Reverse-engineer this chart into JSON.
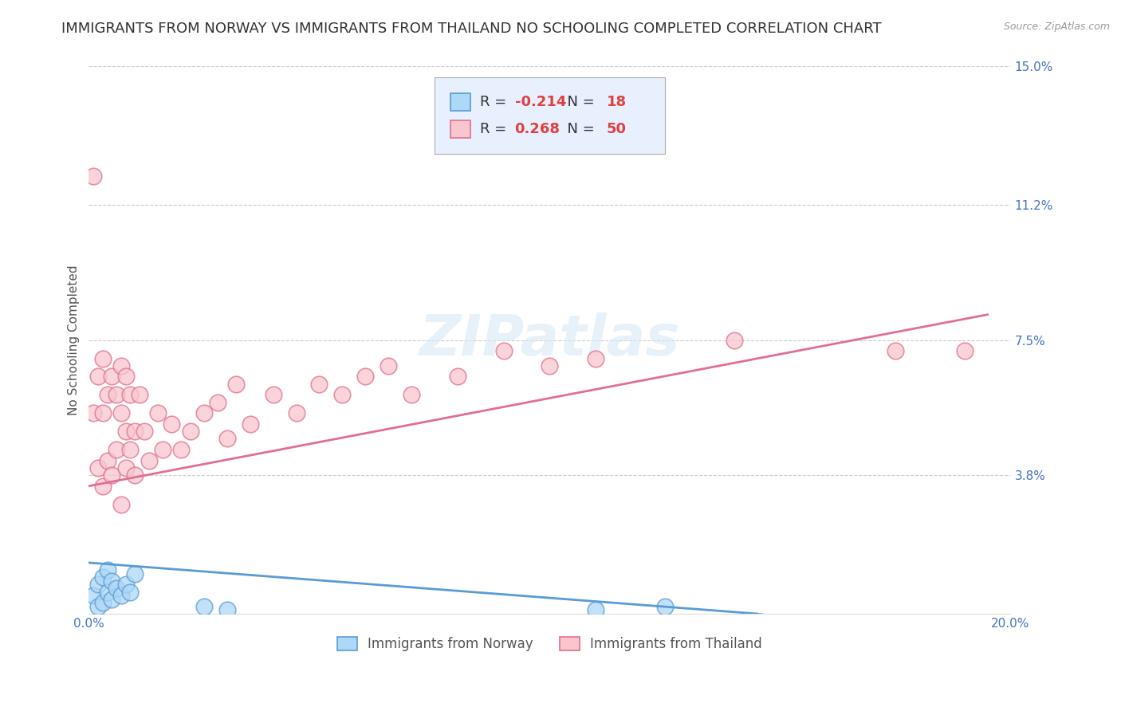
{
  "title": "IMMIGRANTS FROM NORWAY VS IMMIGRANTS FROM THAILAND NO SCHOOLING COMPLETED CORRELATION CHART",
  "source": "Source: ZipAtlas.com",
  "ylabel": "No Schooling Completed",
  "xlim": [
    0.0,
    0.2
  ],
  "ylim": [
    0.0,
    0.15
  ],
  "norway_color": "#ADD8F7",
  "norway_color_dark": "#5B9BD5",
  "thailand_color": "#F9C6CE",
  "thailand_color_dark": "#E07090",
  "norway_R": -0.214,
  "norway_N": 18,
  "thailand_R": 0.268,
  "thailand_N": 50,
  "norway_scatter_x": [
    0.001,
    0.002,
    0.002,
    0.003,
    0.003,
    0.004,
    0.004,
    0.005,
    0.005,
    0.006,
    0.007,
    0.008,
    0.009,
    0.01,
    0.025,
    0.03,
    0.11,
    0.125
  ],
  "norway_scatter_y": [
    0.005,
    0.002,
    0.008,
    0.003,
    0.01,
    0.006,
    0.012,
    0.004,
    0.009,
    0.007,
    0.005,
    0.008,
    0.006,
    0.011,
    0.002,
    0.001,
    0.001,
    0.002
  ],
  "thailand_scatter_x": [
    0.001,
    0.001,
    0.002,
    0.002,
    0.003,
    0.003,
    0.003,
    0.004,
    0.004,
    0.005,
    0.005,
    0.006,
    0.006,
    0.007,
    0.007,
    0.007,
    0.008,
    0.008,
    0.008,
    0.009,
    0.009,
    0.01,
    0.01,
    0.011,
    0.012,
    0.013,
    0.015,
    0.016,
    0.018,
    0.02,
    0.022,
    0.025,
    0.028,
    0.03,
    0.032,
    0.035,
    0.04,
    0.045,
    0.05,
    0.055,
    0.06,
    0.065,
    0.07,
    0.08,
    0.09,
    0.1,
    0.11,
    0.14,
    0.175,
    0.19
  ],
  "thailand_scatter_y": [
    0.055,
    0.12,
    0.04,
    0.065,
    0.035,
    0.055,
    0.07,
    0.042,
    0.06,
    0.038,
    0.065,
    0.045,
    0.06,
    0.03,
    0.055,
    0.068,
    0.04,
    0.05,
    0.065,
    0.045,
    0.06,
    0.05,
    0.038,
    0.06,
    0.05,
    0.042,
    0.055,
    0.045,
    0.052,
    0.045,
    0.05,
    0.055,
    0.058,
    0.048,
    0.063,
    0.052,
    0.06,
    0.055,
    0.063,
    0.06,
    0.065,
    0.068,
    0.06,
    0.065,
    0.072,
    0.068,
    0.07,
    0.075,
    0.072,
    0.072
  ],
  "norway_line_x": [
    0.0,
    0.145
  ],
  "norway_line_y": [
    0.014,
    0.0
  ],
  "thailand_line_x": [
    0.0,
    0.195
  ],
  "thailand_line_y": [
    0.035,
    0.082
  ],
  "watermark_text": "ZIPatlas",
  "title_fontsize": 13,
  "label_fontsize": 11,
  "tick_fontsize": 11,
  "background_color": "#FFFFFF",
  "grid_color": "#CCCCCC",
  "title_color": "#333333",
  "axis_label_color": "#555555",
  "tick_color": "#4472C4",
  "legend_box_color": "#E8F0FE",
  "right_ytick_vals": [
    0.038,
    0.075,
    0.112,
    0.15
  ],
  "right_ytick_labels": [
    "3.8%",
    "7.5%",
    "11.2%",
    "15.0%"
  ]
}
